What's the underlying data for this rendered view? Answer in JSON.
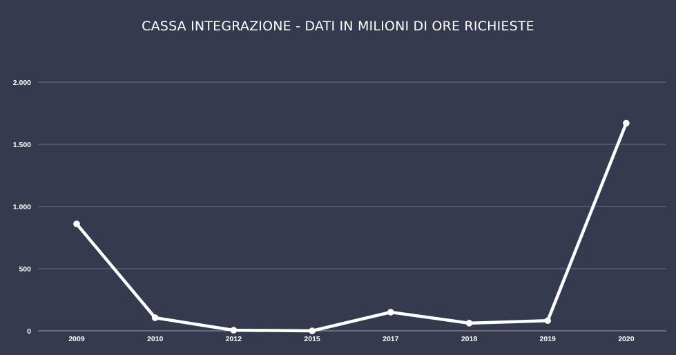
{
  "colors": {
    "background": "#353a4e",
    "grid": "#6e7285",
    "axis": "#9a9dab",
    "series": "#ffffff",
    "text": "#ffffff"
  },
  "chart_data": {
    "type": "line",
    "title": "CASSA INTEGRAZIONE - DATI IN MILIONI DI ORE RICHIESTE",
    "xlabel": "",
    "ylabel": "",
    "categories": [
      "2009",
      "2010",
      "2012",
      "2015",
      "2017",
      "2018",
      "2019",
      "2020"
    ],
    "series": [
      {
        "values": [
          860,
          105,
          5,
          0,
          150,
          62,
          82,
          1670
        ]
      }
    ],
    "ylim": [
      0,
      2000
    ],
    "yticks": [
      0,
      500,
      1000,
      1500,
      2000
    ],
    "ytick_labels": [
      "0",
      "500",
      "1.000",
      "1.500",
      "2.000"
    ],
    "grid": true,
    "legend": "none"
  }
}
